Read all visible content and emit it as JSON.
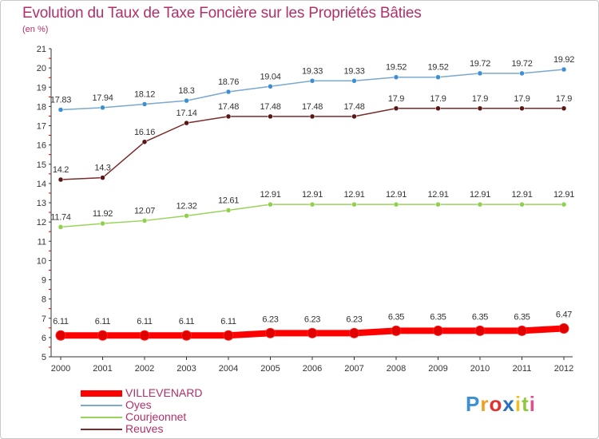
{
  "header": {
    "title": "Evolution du Taux de Taxe Foncière sur les Propriétés Bâties",
    "subtitle": "(en %)"
  },
  "logo": {
    "text": "Proxiti"
  },
  "chart_data": {
    "type": "line",
    "title": "Evolution du Taux de Taxe Foncière sur les Propriétés Bâties",
    "ylabel": "(en %)",
    "xlabel": "",
    "ylim": [
      5,
      21
    ],
    "yticks": [
      "5",
      "6",
      "7",
      "8",
      "9",
      "10",
      "11",
      "12",
      "13",
      "14",
      "15",
      "16",
      "17",
      "18",
      "19",
      "20",
      "21"
    ],
    "categories": [
      "2000",
      "2001",
      "2002",
      "2003",
      "2004",
      "2005",
      "2006",
      "2007",
      "2008",
      "2009",
      "2010",
      "2011",
      "2012"
    ],
    "grid": false,
    "legend_position": "bottom-left",
    "series": [
      {
        "name": "VILLEVENARD",
        "color": "#ff0000",
        "marker": "#e00000",
        "width": 8,
        "values": [
          6.11,
          6.11,
          6.11,
          6.11,
          6.11,
          6.23,
          6.23,
          6.23,
          6.35,
          6.35,
          6.35,
          6.35,
          6.47
        ],
        "labels": [
          "6.11",
          "6.11",
          "6.11",
          "6.11",
          "6.11",
          "6.23",
          "6.23",
          "6.23",
          "6.35",
          "6.35",
          "6.35",
          "6.35",
          "6.47"
        ]
      },
      {
        "name": "Oyes",
        "color": "#7aa8cf",
        "marker": "#3d8fd4",
        "width": 1.5,
        "values": [
          17.83,
          17.94,
          18.12,
          18.3,
          18.76,
          19.04,
          19.33,
          19.33,
          19.52,
          19.52,
          19.72,
          19.72,
          19.92
        ],
        "labels": [
          "17.83",
          "17.94",
          "18.12",
          "18.3",
          "18.76",
          "19.04",
          "19.33",
          "19.33",
          "19.52",
          "19.52",
          "19.72",
          "19.72",
          "19.92"
        ]
      },
      {
        "name": "Courjeonnet",
        "color": "#9ad35a",
        "marker": "#8fd14a",
        "width": 1.5,
        "values": [
          11.74,
          11.92,
          12.07,
          12.32,
          12.61,
          12.91,
          12.91,
          12.91,
          12.91,
          12.91,
          12.91,
          12.91,
          12.91
        ],
        "labels": [
          "11.74",
          "11.92",
          "12.07",
          "12.32",
          "12.61",
          "12.91",
          "12.91",
          "12.91",
          "12.91",
          "12.91",
          "12.91",
          "12.91",
          "12.91"
        ]
      },
      {
        "name": "Reuves",
        "color": "#7a2a2a",
        "marker": "#5a1515",
        "width": 1.5,
        "values": [
          14.2,
          14.3,
          16.16,
          17.14,
          17.48,
          17.48,
          17.48,
          17.48,
          17.9,
          17.9,
          17.9,
          17.9,
          17.9
        ],
        "labels": [
          "14.2",
          "14.3",
          "16.16",
          "17.14",
          "17.48",
          "17.48",
          "17.48",
          "17.48",
          "17.9",
          "17.9",
          "17.9",
          "17.9",
          "17.9"
        ]
      }
    ]
  }
}
